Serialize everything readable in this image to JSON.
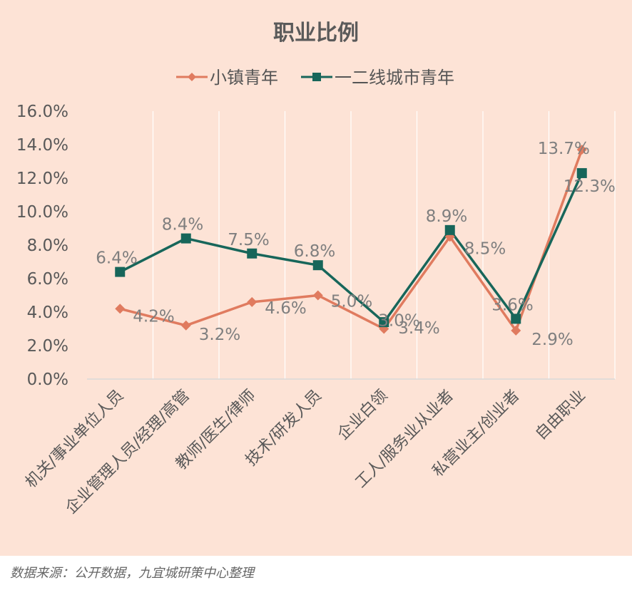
{
  "chart_data": {
    "type": "line",
    "title": "职业比例",
    "categories": [
      "机关/事业单位人员",
      "企业管理人员/经理/高管",
      "教师/医生/律师",
      "技术/研发人员",
      "企业白领",
      "工人/服务业从业者",
      "私营业主/创业者",
      "自由职业"
    ],
    "series": [
      {
        "name": "小镇青年",
        "values": [
          4.2,
          3.2,
          4.6,
          5.0,
          3.0,
          8.5,
          2.9,
          13.7
        ],
        "labels": [
          "4.2%",
          "3.2%",
          "4.6%",
          "5.0%",
          "3.0%",
          "8.5%",
          "2.9%",
          "13.7%"
        ],
        "color": "#e07b5f",
        "marker": "diamond"
      },
      {
        "name": "一二线城市青年",
        "values": [
          6.4,
          8.4,
          7.5,
          6.8,
          3.4,
          8.9,
          3.6,
          12.3
        ],
        "labels": [
          "6.4%",
          "8.4%",
          "7.5%",
          "6.8%",
          "3.4%",
          "8.9%",
          "3.6%",
          "12.3%"
        ],
        "color": "#17665a",
        "marker": "square"
      }
    ],
    "yticks": [
      "0.0%",
      "2.0%",
      "4.0%",
      "6.0%",
      "8.0%",
      "10.0%",
      "12.0%",
      "14.0%",
      "16.0%"
    ],
    "ylim": [
      0,
      16
    ],
    "grid": "vertical",
    "legend": "top"
  },
  "source": "数据来源：公开数据，九宜城研策中心整理",
  "colors": {
    "background": "#fde3d6",
    "grid": "#ffffff",
    "axis": "#d9d9d9"
  }
}
